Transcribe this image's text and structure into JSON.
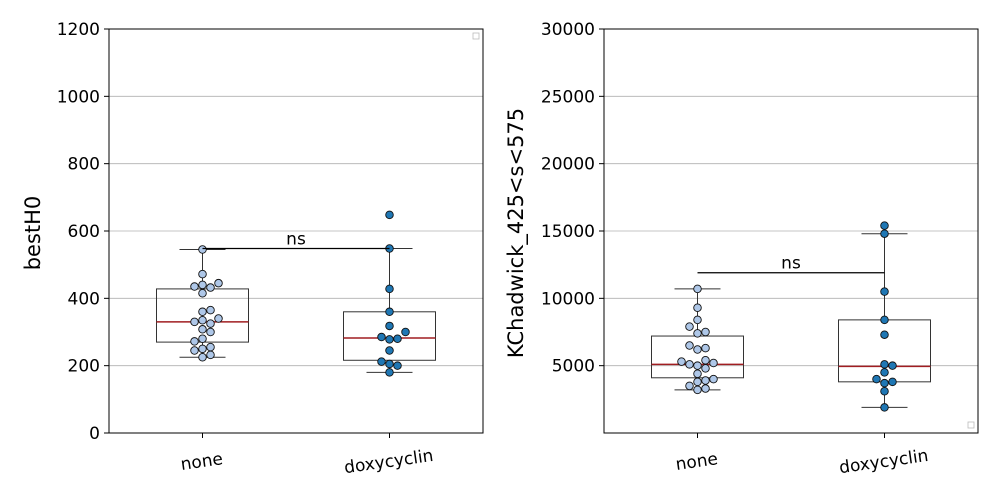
{
  "chart_data": [
    {
      "type": "box",
      "ylabel": "bestH0",
      "ylim": [
        0,
        1200
      ],
      "yticks": [
        0,
        200,
        400,
        600,
        800,
        1000,
        1200
      ],
      "grid": "horizontal",
      "categories": [
        "none",
        "doxycyclin"
      ],
      "boxes": [
        {
          "category": "none",
          "whislo": 225,
          "q1": 270,
          "median": 330,
          "q3": 428,
          "whishi": 545,
          "color": "#aec7e8",
          "points": [
            545,
            472,
            445,
            440,
            435,
            432,
            415,
            365,
            360,
            340,
            335,
            330,
            325,
            308,
            300,
            280,
            272,
            255,
            250,
            245,
            232,
            225
          ]
        },
        {
          "category": "doxycyclin",
          "whislo": 180,
          "q1": 216,
          "median": 282,
          "q3": 360,
          "whishi": 548,
          "color": "#1f77b4",
          "points": [
            648,
            548,
            428,
            360,
            318,
            300,
            285,
            280,
            278,
            245,
            212,
            205,
            200,
            180
          ]
        }
      ],
      "annotations": [
        {
          "text": "ns",
          "from": "none",
          "to": "doxycyclin",
          "y": 548
        }
      ]
    },
    {
      "type": "box",
      "ylabel": "KChadwick_425<s<575",
      "ylim": [
        0,
        30000
      ],
      "yticks": [
        5000,
        10000,
        15000,
        20000,
        25000,
        30000
      ],
      "grid": "horizontal",
      "categories": [
        "none",
        "doxycyclin"
      ],
      "boxes": [
        {
          "category": "none",
          "whislo": 3200,
          "q1": 4100,
          "median": 5100,
          "q3": 7200,
          "whishi": 10700,
          "color": "#aec7e8",
          "points": [
            10700,
            9300,
            8400,
            7900,
            7500,
            7400,
            6500,
            6300,
            6200,
            5400,
            5300,
            5200,
            5100,
            5000,
            4800,
            4400,
            4000,
            3900,
            3800,
            3500,
            3300,
            3200
          ]
        },
        {
          "category": "doxycyclin",
          "whislo": 1900,
          "q1": 3800,
          "median": 4950,
          "q3": 8400,
          "whishi": 14800,
          "color": "#1f77b4",
          "points": [
            15400,
            14800,
            10500,
            8400,
            7300,
            5100,
            5000,
            4500,
            4000,
            3800,
            3700,
            3100,
            1900
          ]
        }
      ],
      "annotations": [
        {
          "text": "ns",
          "from": "none",
          "to": "doxycyclin",
          "y": 11900
        }
      ]
    }
  ]
}
